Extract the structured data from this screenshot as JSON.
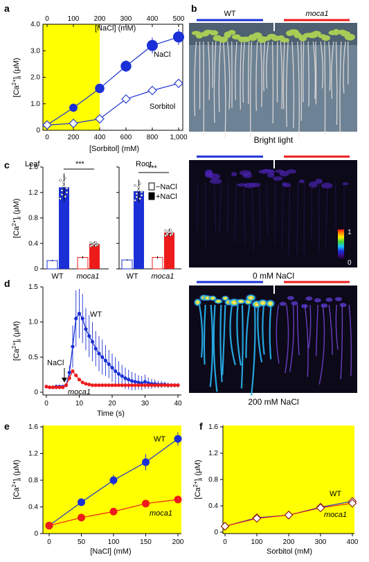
{
  "panel_labels": {
    "a": "a",
    "b": "b",
    "c": "c",
    "d": "d",
    "e": "e",
    "f": "f"
  },
  "colors": {
    "wt": "#1a2fd6",
    "moca1": "#ee1b1b",
    "highlight": "#ffff00",
    "sorbitol_edge": "#2a3fc9",
    "f_edge": "#8b1a1a"
  },
  "images": {
    "genotype_wt": "WT",
    "genotype_moca1": "moca1",
    "caption_bright": "Bright light",
    "caption_0mm": "0 mM NaCl",
    "caption_200mm": "200 mM NaCl",
    "colorbar_max": "1",
    "colorbar_min": "0"
  },
  "chart_data": [
    {
      "panel": "a",
      "type": "scatter",
      "ylabel": "[Ca2+]i (μM)",
      "xlabel": "[Sorbitol] (mM)",
      "xlabel_top": "[NaCl] (mM)",
      "ylim": [
        0,
        4.0
      ],
      "yticks": [
        "0",
        "1.0",
        "2.0",
        "3.0",
        "4.0"
      ],
      "xlim": [
        0,
        1000
      ],
      "xticks": [
        "0",
        "200",
        "400",
        "600",
        "800",
        "1,000"
      ],
      "xlim_top": [
        0,
        500
      ],
      "xticks_top": [
        "0",
        "100",
        "200",
        "300",
        "400",
        "500"
      ],
      "highlight": {
        "from": 0,
        "to": 400
      },
      "series": [
        {
          "name": "NaCl",
          "x": [
            0,
            200,
            400,
            600,
            800,
            1000
          ],
          "y": [
            0.2,
            0.85,
            1.58,
            2.42,
            3.2,
            3.52
          ],
          "err": [
            0.05,
            0.1,
            0.1,
            0.22,
            0.3,
            0.3
          ],
          "marker": "filled"
        },
        {
          "name": "Sorbitol",
          "x": [
            0,
            200,
            400,
            600,
            800,
            1000
          ],
          "y": [
            0.2,
            0.26,
            0.43,
            1.18,
            1.5,
            1.77
          ],
          "err": [
            0.05,
            0.05,
            0.06,
            0.12,
            0.15,
            0.15
          ],
          "marker": "open"
        }
      ]
    },
    {
      "panel": "c",
      "type": "bar",
      "ylabel": "[Ca2+]i (μM)",
      "ylim": [
        0,
        1.6
      ],
      "yticks": [
        "0",
        "0.4",
        "0.8",
        "1.2",
        "1.6"
      ],
      "groups": [
        {
          "name": "Leaf",
          "sig": "***",
          "categories": [
            "WT",
            "moca1"
          ],
          "values": {
            "-NaCl": [
              0.13,
              0.18
            ],
            "+NaCl": [
              1.28,
              0.39
            ]
          },
          "err": {
            "-NaCl": [
              0.01,
              0.02
            ],
            "+NaCl": [
              0.22,
              0.04
            ]
          }
        },
        {
          "name": "Root",
          "sig": "***",
          "categories": [
            "WT",
            "moca1"
          ],
          "values": {
            "-NaCl": [
              0.14,
              0.18
            ],
            "+NaCl": [
              1.22,
              0.57
            ]
          },
          "err": {
            "-NaCl": [
              0.01,
              0.02
            ],
            "+NaCl": [
              0.18,
              0.06
            ]
          }
        }
      ],
      "legend": [
        "−NaCl",
        "+NaCl"
      ]
    },
    {
      "panel": "d",
      "type": "line",
      "ylabel": "[Ca2+]i (μM)",
      "xlabel": "Time (s)",
      "ylim": [
        0,
        1.5
      ],
      "yticks": [
        "0",
        "0.5",
        "1.0",
        "1.5"
      ],
      "xlim": [
        0,
        40
      ],
      "xticks": [
        "0",
        "10",
        "20",
        "30",
        "40"
      ],
      "annotation": "NaCl",
      "annotation_x": 6,
      "series": [
        {
          "name": "WT",
          "x": [
            0,
            1,
            2,
            3,
            4,
            5,
            6,
            7,
            8,
            9,
            10,
            11,
            12,
            13,
            14,
            15,
            16,
            17,
            18,
            19,
            20,
            21,
            22,
            23,
            24,
            25,
            26,
            27,
            28,
            29,
            30,
            31,
            32,
            33,
            34,
            35,
            36,
            37,
            38,
            39,
            40
          ],
          "y": [
            0.08,
            0.07,
            0.07,
            0.08,
            0.08,
            0.08,
            0.1,
            0.28,
            0.65,
            1.05,
            1.12,
            1.05,
            0.9,
            0.8,
            0.72,
            0.62,
            0.55,
            0.5,
            0.45,
            0.4,
            0.35,
            0.3,
            0.26,
            0.23,
            0.2,
            0.18,
            0.16,
            0.15,
            0.14,
            0.13,
            0.15,
            0.13,
            0.12,
            0.12,
            0.11,
            0.11,
            0.11,
            0.1,
            0.1,
            0.1,
            0.1
          ],
          "err": [
            0.02,
            0.02,
            0.02,
            0.02,
            0.02,
            0.02,
            0.03,
            0.1,
            0.3,
            0.4,
            0.35,
            0.35,
            0.3,
            0.3,
            0.28,
            0.25,
            0.25,
            0.25,
            0.22,
            0.2,
            0.2,
            0.2,
            0.18,
            0.16,
            0.15,
            0.14,
            0.13,
            0.12,
            0.1,
            0.1,
            0.1,
            0.08,
            0.07,
            0.06,
            0.05,
            0.05,
            0.04,
            0.04,
            0.03,
            0.03,
            0.03
          ]
        },
        {
          "name": "moca1",
          "x": [
            0,
            1,
            2,
            3,
            4,
            5,
            6,
            7,
            8,
            9,
            10,
            11,
            12,
            13,
            14,
            15,
            16,
            17,
            18,
            19,
            20,
            21,
            22,
            23,
            24,
            25,
            26,
            27,
            28,
            29,
            30,
            31,
            32,
            33,
            34,
            35,
            36,
            37,
            38,
            39,
            40
          ],
          "y": [
            0.08,
            0.07,
            0.07,
            0.07,
            0.07,
            0.07,
            0.1,
            0.2,
            0.3,
            0.24,
            0.18,
            0.14,
            0.12,
            0.11,
            0.1,
            0.1,
            0.1,
            0.1,
            0.1,
            0.1,
            0.1,
            0.1,
            0.1,
            0.1,
            0.1,
            0.1,
            0.1,
            0.1,
            0.1,
            0.1,
            0.1,
            0.1,
            0.1,
            0.1,
            0.1,
            0.1,
            0.1,
            0.1,
            0.1,
            0.1,
            0.1
          ]
        }
      ]
    },
    {
      "panel": "e",
      "type": "scatter",
      "ylabel": "[Ca2+]i (μM)",
      "xlabel": "[NaCl] (mM)",
      "ylim": [
        0,
        1.6
      ],
      "yticks": [
        "0",
        "0.4",
        "0.8",
        "1.2",
        "1.6"
      ],
      "xlim": [
        0,
        200
      ],
      "xticks": [
        "0",
        "50",
        "100",
        "150",
        "200"
      ],
      "series": [
        {
          "name": "WT",
          "x": [
            0,
            50,
            100,
            150,
            200
          ],
          "y": [
            0.12,
            0.47,
            0.8,
            1.07,
            1.42
          ],
          "err": [
            0.02,
            0.04,
            0.08,
            0.12,
            0.1
          ]
        },
        {
          "name": "moca1",
          "x": [
            0,
            50,
            100,
            150,
            200
          ],
          "y": [
            0.12,
            0.24,
            0.33,
            0.45,
            0.51
          ],
          "err": [
            0.02,
            0.02,
            0.03,
            0.03,
            0.03
          ]
        }
      ]
    },
    {
      "panel": "f",
      "type": "scatter",
      "ylabel": "[Ca2+]i (μM)",
      "xlabel": "Sorbitol (mM)",
      "ylim": [
        0,
        1.6
      ],
      "yticks": [
        "0",
        "0.4",
        "0.8",
        "1.2",
        "1.6"
      ],
      "xlim": [
        0,
        400
      ],
      "xticks": [
        "0",
        "100",
        "200",
        "300",
        "400"
      ],
      "series": [
        {
          "name": "WT",
          "x": [
            0,
            100,
            200,
            300,
            400
          ],
          "y": [
            0.09,
            0.22,
            0.26,
            0.38,
            0.47
          ],
          "marker": "open"
        },
        {
          "name": "moca1",
          "x": [
            0,
            100,
            200,
            300,
            400
          ],
          "y": [
            0.09,
            0.21,
            0.26,
            0.37,
            0.44
          ],
          "marker": "open"
        }
      ]
    }
  ]
}
